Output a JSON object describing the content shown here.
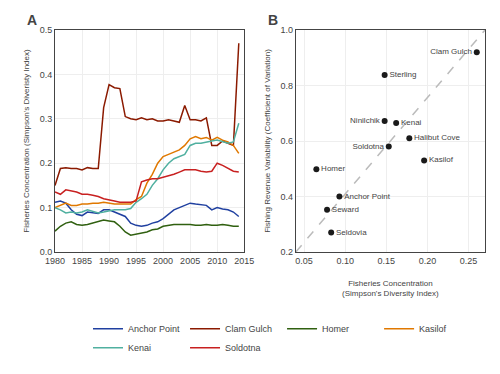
{
  "chart_data": [
    {
      "type": "line",
      "title": "A",
      "ylabel": "Fisheries Concentration (Simpson's Diveristy Index)",
      "x": [
        1980,
        1981,
        1982,
        1983,
        1984,
        1985,
        1986,
        1987,
        1988,
        1989,
        1990,
        1991,
        1992,
        1993,
        1994,
        1995,
        1996,
        1997,
        1998,
        1999,
        2000,
        2001,
        2002,
        2003,
        2004,
        2005,
        2006,
        2007,
        2008,
        2009,
        2010,
        2011,
        2012,
        2013,
        2014
      ],
      "series": [
        {
          "name": "Anchor Point",
          "color": "#2040a0",
          "values": [
            0.112,
            0.115,
            0.11,
            0.095,
            0.085,
            0.082,
            0.09,
            0.088,
            0.087,
            0.095,
            0.095,
            0.09,
            0.085,
            0.08,
            0.065,
            0.06,
            0.058,
            0.06,
            0.065,
            0.068,
            0.075,
            0.085,
            0.095,
            0.1,
            0.105,
            0.11,
            0.108,
            0.107,
            0.105,
            0.095,
            0.1,
            0.097,
            0.095,
            0.09,
            0.08
          ]
        },
        {
          "name": "Clam Gulch",
          "color": "#8b1a00",
          "values": [
            0.15,
            0.188,
            0.19,
            0.188,
            0.188,
            0.185,
            0.19,
            0.188,
            0.188,
            0.325,
            0.377,
            0.37,
            0.368,
            0.305,
            0.3,
            0.298,
            0.302,
            0.298,
            0.3,
            0.295,
            0.295,
            0.298,
            0.295,
            0.292,
            0.33,
            0.298,
            0.298,
            0.295,
            0.302,
            0.24,
            0.24,
            0.25,
            0.245,
            0.24,
            0.47
          ]
        },
        {
          "name": "Homer",
          "color": "#306010",
          "values": [
            0.047,
            0.058,
            0.065,
            0.068,
            0.062,
            0.06,
            0.062,
            0.065,
            0.068,
            0.072,
            0.07,
            0.068,
            0.058,
            0.045,
            0.038,
            0.04,
            0.042,
            0.045,
            0.05,
            0.052,
            0.058,
            0.06,
            0.062,
            0.062,
            0.062,
            0.062,
            0.06,
            0.06,
            0.062,
            0.06,
            0.06,
            0.062,
            0.06,
            0.058,
            0.058
          ]
        },
        {
          "name": "Kasilof",
          "color": "#e07800",
          "values": [
            0.1,
            0.105,
            0.11,
            0.105,
            0.105,
            0.108,
            0.108,
            0.11,
            0.11,
            0.112,
            0.11,
            0.108,
            0.108,
            0.108,
            0.108,
            0.118,
            0.125,
            0.155,
            0.175,
            0.2,
            0.215,
            0.22,
            0.225,
            0.23,
            0.24,
            0.255,
            0.26,
            0.255,
            0.258,
            0.252,
            0.258,
            0.252,
            0.248,
            0.24,
            0.222
          ]
        },
        {
          "name": "Kenai",
          "color": "#50b0a0",
          "values": [
            0.1,
            0.095,
            0.088,
            0.09,
            0.088,
            0.09,
            0.095,
            0.092,
            0.088,
            0.09,
            0.092,
            0.095,
            0.095,
            0.095,
            0.098,
            0.112,
            0.12,
            0.13,
            0.15,
            0.165,
            0.185,
            0.2,
            0.21,
            0.215,
            0.22,
            0.24,
            0.245,
            0.245,
            0.248,
            0.25,
            0.252,
            0.248,
            0.245,
            0.248,
            0.29
          ]
        },
        {
          "name": "Soldotna",
          "color": "#c82020",
          "values": [
            0.135,
            0.13,
            0.14,
            0.138,
            0.135,
            0.13,
            0.13,
            0.128,
            0.125,
            0.12,
            0.118,
            0.115,
            0.112,
            0.112,
            0.112,
            0.115,
            0.158,
            0.162,
            0.165,
            0.165,
            0.168,
            0.172,
            0.175,
            0.18,
            0.185,
            0.185,
            0.185,
            0.182,
            0.18,
            0.182,
            0.2,
            0.195,
            0.188,
            0.182,
            0.18
          ]
        }
      ],
      "xlim": [
        1980,
        2015
      ],
      "xticks": [
        1980,
        1985,
        1990,
        1995,
        2000,
        2005,
        2010,
        2015
      ],
      "ylim": [
        0.0,
        0.5
      ],
      "yticks": [
        {
          "value": 0.0,
          "label": "0.0"
        },
        0.1,
        0.2,
        0.3,
        0.4,
        0.5
      ],
      "grid": true,
      "legend": "bottom"
    },
    {
      "type": "scatter",
      "title": "B",
      "xlabel": "Fisheries Concentration\n(Simpson's Diversity Index)",
      "ylabel": "Fishing Revenue Variability (Coefficient of Variation)",
      "series": [
        {
          "type": "line",
          "color": "#bbbbbb",
          "line_style": "dashed",
          "x": [
            0.04,
            0.27
          ],
          "values": [
            0.2,
            1.0
          ]
        },
        {
          "type": "scatter",
          "color": "#1a1a1a",
          "marker": "circle",
          "x": [
            0.26,
            0.148,
            0.148,
            0.162,
            0.178,
            0.153,
            0.196,
            0.065,
            0.093,
            0.078,
            0.083
          ],
          "values": [
            0.92,
            0.838,
            0.672,
            0.665,
            0.61,
            0.58,
            0.53,
            0.498,
            0.4,
            0.352,
            0.27
          ],
          "labels": [
            "Clam Gulch",
            "Sterling",
            "Ninilchik",
            "Kenai",
            "Halibut Cove",
            "Soldotna",
            "Kasilof",
            "Homer",
            "Anchor Point",
            "Seward",
            "Seldovia"
          ]
        }
      ],
      "xlim": [
        0.04,
        0.27
      ],
      "xticks": [
        0.05,
        {
          "value": 0.1,
          "label": "0.10"
        },
        0.15,
        {
          "value": 0.2,
          "label": "0.20"
        },
        0.25
      ],
      "ylim": [
        0.2,
        1.0
      ],
      "yticks": [
        0.2,
        0.4,
        0.6,
        0.8,
        {
          "value": 1.0,
          "label": "1.0"
        }
      ],
      "grid": true
    }
  ]
}
